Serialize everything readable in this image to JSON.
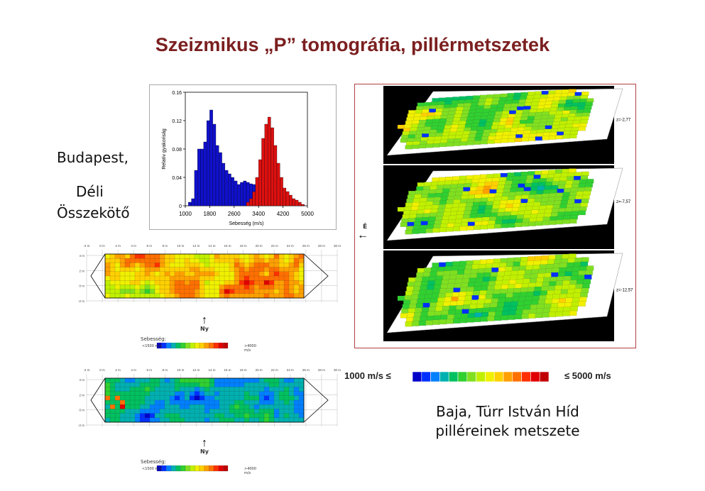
{
  "title": "Szeizmikus „P” tomográfia, pillérmetszetek",
  "location_budapest": {
    "line1": "Budapest,",
    "line2": "Déli",
    "line3": "Összekötő"
  },
  "location_baja": {
    "line1": "Baja, Türr István Híd",
    "line2": "pilléreinek metszete"
  },
  "histogram": {
    "chart_data": {
      "type": "bar",
      "xlabel": "Sebesség (m/s)",
      "ylabel": "Relatív gyakoriság",
      "xticks": [
        "1000",
        "1800",
        "2600",
        "3400",
        "4200",
        "5000"
      ],
      "yticks": [
        "0",
        "0.04",
        "0.08",
        "0.12",
        "0.16"
      ],
      "xlim": [
        1000,
        5000
      ],
      "ylim": [
        0,
        0.16
      ],
      "bin_width": 100,
      "bin_start": 1000,
      "series": [
        {
          "color": "#1010cc",
          "values": [
            0.0,
            0.005,
            0.01,
            0.05,
            0.08,
            0.08,
            0.09,
            0.12,
            0.135,
            0.115,
            0.085,
            0.075,
            0.06,
            0.05,
            0.045,
            0.04,
            0.035,
            0.03,
            0.033,
            0.035,
            0.033,
            0.031,
            0.03,
            0.028,
            0.027,
            0.028,
            0.027,
            0.025,
            0.022,
            0.02,
            0.019,
            0.016,
            0.012,
            0.01,
            0.008,
            0.005,
            0.003,
            0.002,
            0.001,
            0.0
          ]
        },
        {
          "color": "#dd1010",
          "values": [
            0.0,
            0.0,
            0.0,
            0.0,
            0.0,
            0.0,
            0.0,
            0.0,
            0.0,
            0.0,
            0.0,
            0.0,
            0.0,
            0.0,
            0.0,
            0.0,
            0.0,
            0.0,
            0.0,
            0.0,
            0.005,
            0.01,
            0.02,
            0.04,
            0.065,
            0.095,
            0.115,
            0.125,
            0.11,
            0.085,
            0.06,
            0.04,
            0.025,
            0.02,
            0.015,
            0.01,
            0.008,
            0.005,
            0.002,
            0.0
          ]
        }
      ]
    }
  },
  "tomo_budapest": {
    "top_ticks": [
      "-2 m",
      "0 m",
      "2 m",
      "4 m",
      "6 m",
      "8 m",
      "10 m",
      "12 m",
      "14 m",
      "16 m",
      "18 m",
      "20 m",
      "22 m",
      "24 m",
      "26 m",
      "28 m",
      "30 m"
    ],
    "left_ticks": [
      "4 m",
      "2 m",
      "0 m",
      "-2 m"
    ],
    "north_label": "Ny",
    "legend_title": "Sebesség:",
    "legend_low": "<1500 m/s",
    "legend_high": ">4000 m/s"
  },
  "tomo_budapest2": {
    "top_ticks": [
      "-2 m",
      "0 m",
      "2 m",
      "4 m",
      "6 m",
      "8 m",
      "10 m",
      "12 m",
      "14 m",
      "16 m",
      "18 m",
      "20 m",
      "22 m",
      "24 m",
      "26 m",
      "28 m",
      "30 m"
    ],
    "left_ticks": [
      "4 m",
      "2 m",
      "0 m",
      "-2 m"
    ],
    "north_label": "Ny",
    "legend_title": "Sebesség:",
    "legend_low": "<1500 m/s",
    "legend_high": ">4000 m/s"
  },
  "tomo_baja": {
    "depths": [
      "z=-2,77",
      "z=-7,57",
      "z=-12,57"
    ],
    "direction_label": "É"
  },
  "velocity_scale": {
    "low_label": "1000 m/s ≤",
    "high_label": "≤ 5000 m/s",
    "colors": [
      "#0000c8",
      "#0030ff",
      "#0080ff",
      "#00b0b0",
      "#00c060",
      "#30d030",
      "#80e020",
      "#c0f000",
      "#f0f000",
      "#ffd000",
      "#ffa000",
      "#ff7000",
      "#ff3000",
      "#e00000",
      "#c00000"
    ]
  }
}
